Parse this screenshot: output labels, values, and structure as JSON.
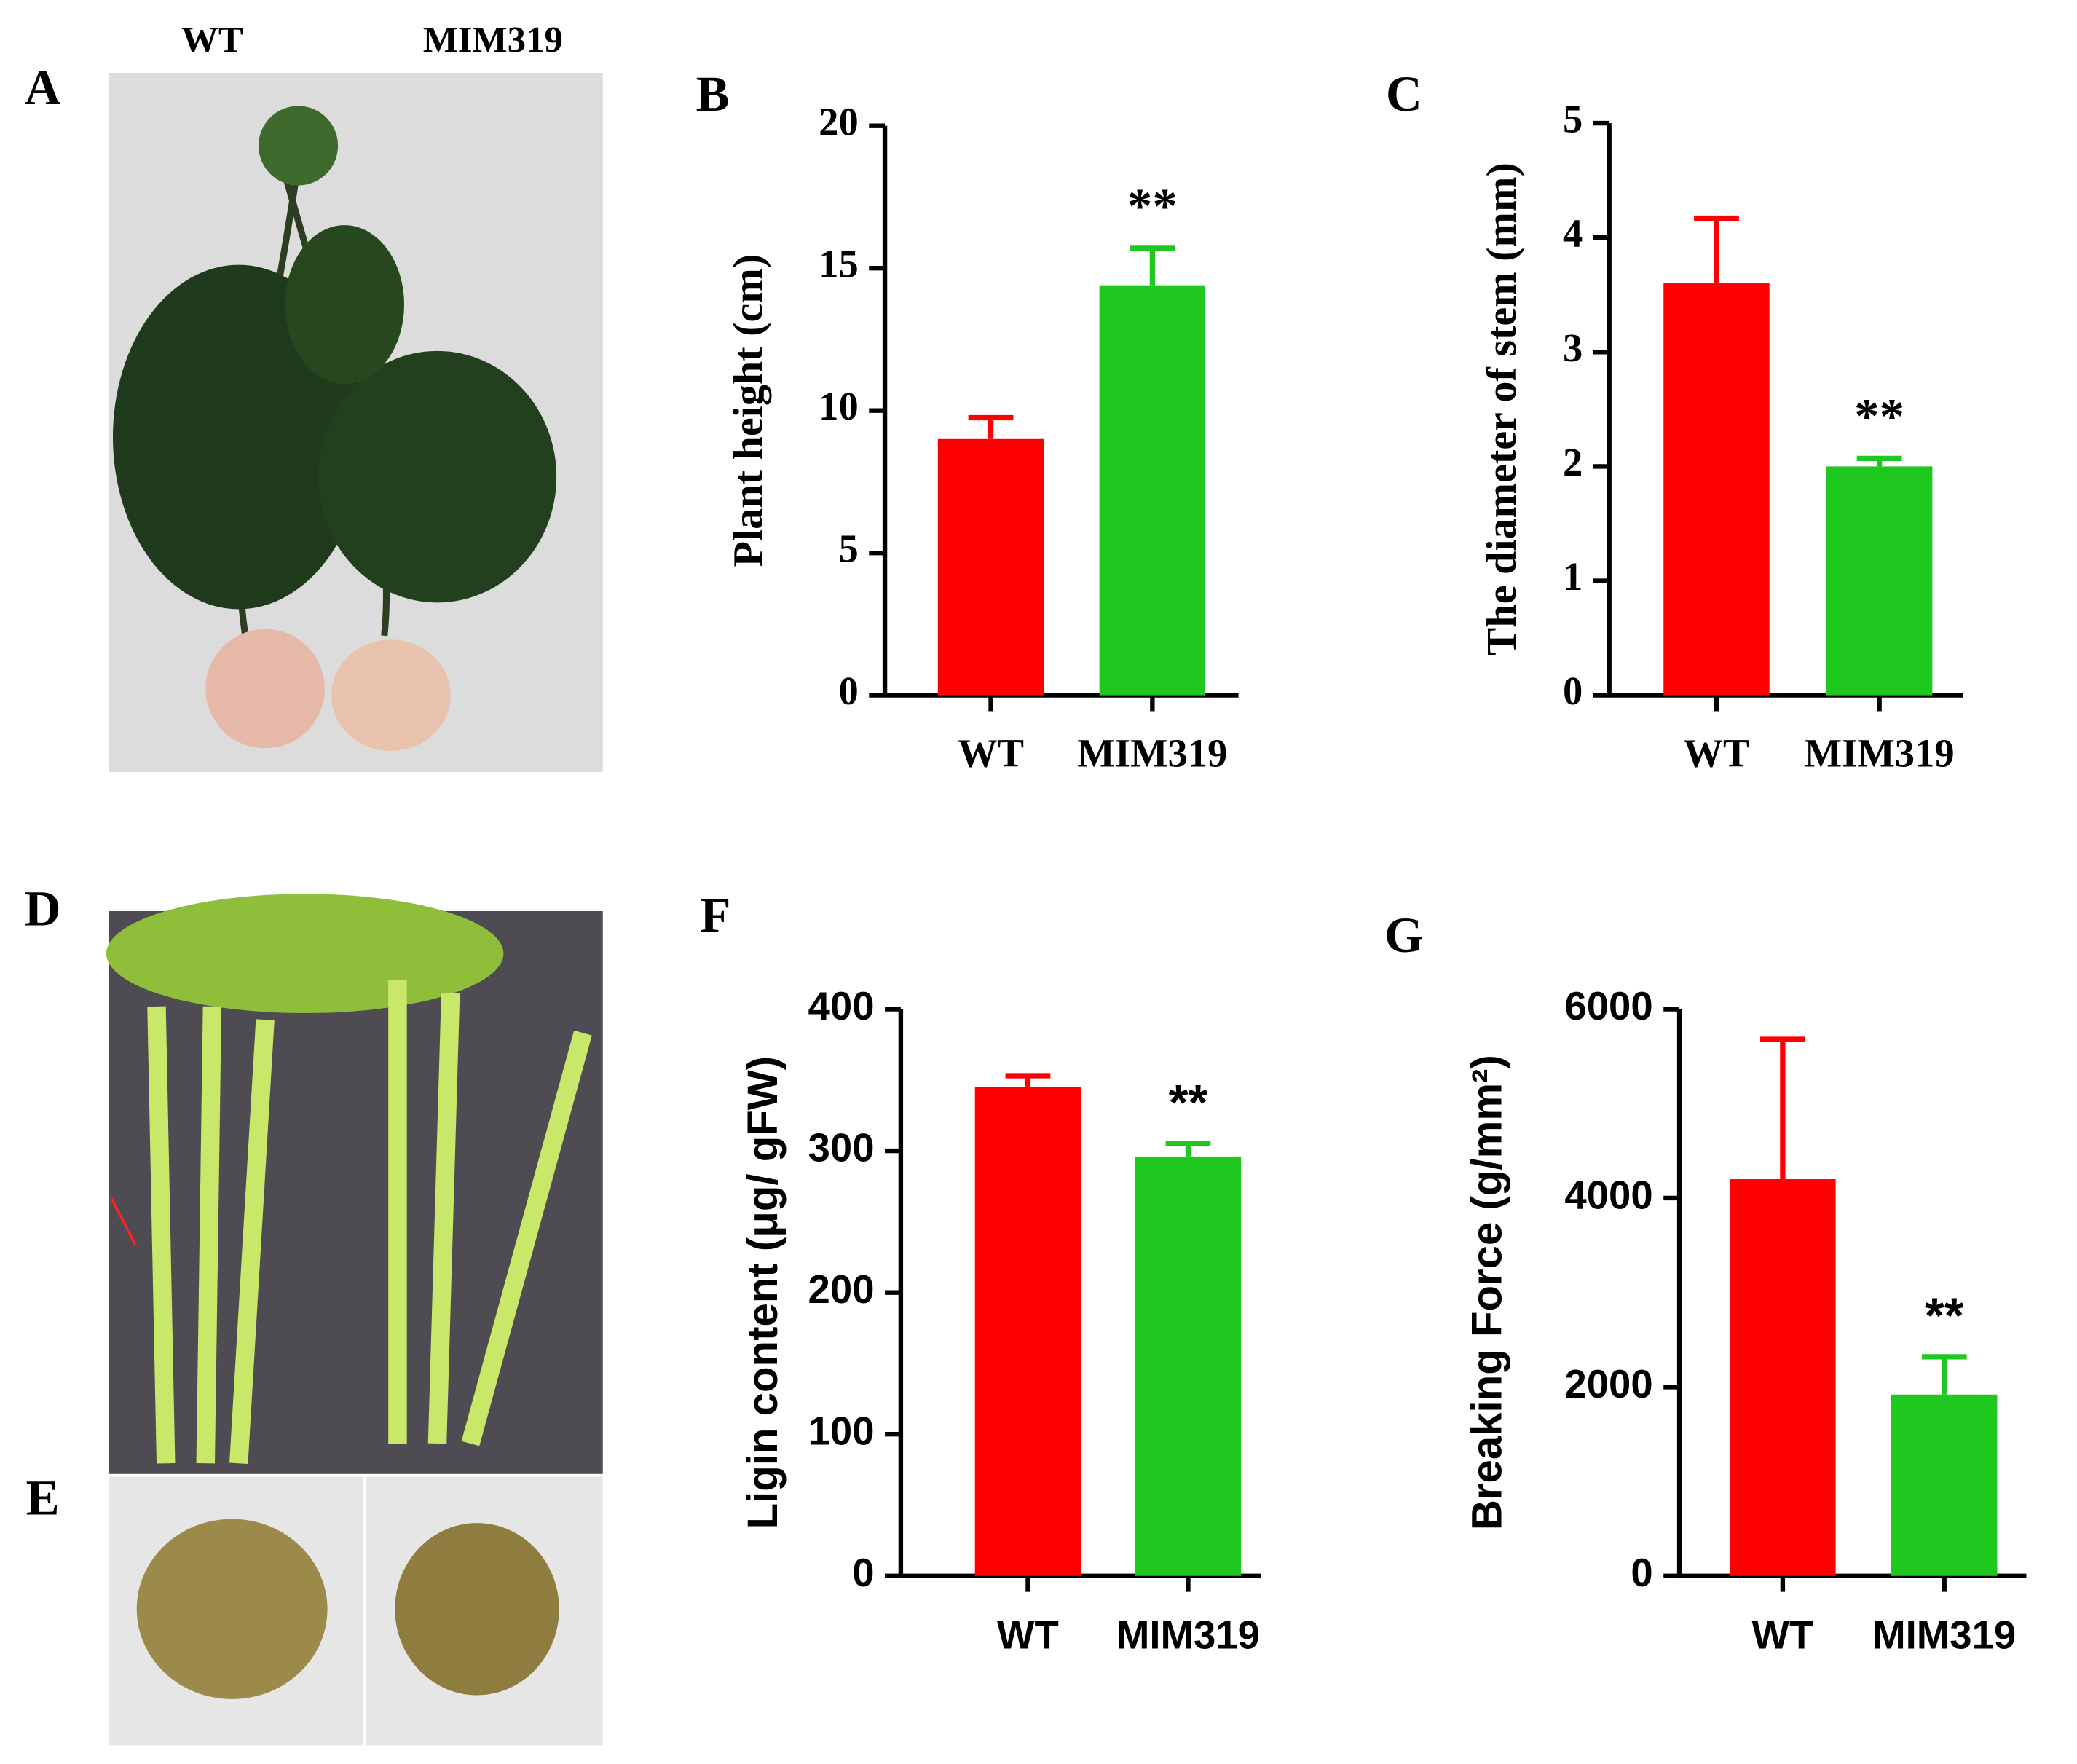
{
  "photos": {
    "panel_a": "A",
    "panel_d": "D",
    "panel_e": "E",
    "label_left": "WT",
    "label_right": "MIM319"
  },
  "chart_data": [
    {
      "type": "bar",
      "panel_label": "B",
      "ylabel": "Plant height (cm)",
      "categories": [
        "WT",
        "MIM319"
      ],
      "values": [
        9.0,
        14.4
      ],
      "errors": [
        0.75,
        1.3
      ],
      "colors": [
        "#ff0000",
        "#1ec81e"
      ],
      "annotations": [
        null,
        "**"
      ],
      "ylim": [
        0,
        20
      ],
      "yticks": [
        0,
        5,
        10,
        15,
        20
      ]
    },
    {
      "type": "bar",
      "panel_label": "C",
      "ylabel": "The diameter of stem (mm)",
      "categories": [
        "WT",
        "MIM319"
      ],
      "values": [
        3.6,
        2.0
      ],
      "errors": [
        0.57,
        0.07
      ],
      "colors": [
        "#ff0000",
        "#1ec81e"
      ],
      "annotations": [
        null,
        "**"
      ],
      "ylim": [
        0,
        5
      ],
      "yticks": [
        0,
        1,
        2,
        3,
        4,
        5
      ]
    },
    {
      "type": "bar",
      "panel_label": "F",
      "ylabel": "Ligin content  (μg/ gFW)",
      "categories": [
        "WT",
        "MIM319"
      ],
      "values": [
        345,
        296
      ],
      "errors": [
        8,
        9
      ],
      "colors": [
        "#ff0000",
        "#1ec81e"
      ],
      "annotations": [
        null,
        "**"
      ],
      "ylim": [
        0,
        400
      ],
      "yticks": [
        0,
        100,
        200,
        300,
        400
      ]
    },
    {
      "type": "bar",
      "panel_label": "G",
      "ylabel": "Breaking Force (g/mm²)",
      "categories": [
        "WT",
        "MIM319"
      ],
      "values": [
        4200,
        1920
      ],
      "errors": [
        1480,
        400
      ],
      "colors": [
        "#ff0000",
        "#1ec81e"
      ],
      "annotations": [
        null,
        "**"
      ],
      "ylim": [
        0,
        6000
      ],
      "yticks": [
        0,
        2000,
        4000,
        6000
      ]
    }
  ]
}
